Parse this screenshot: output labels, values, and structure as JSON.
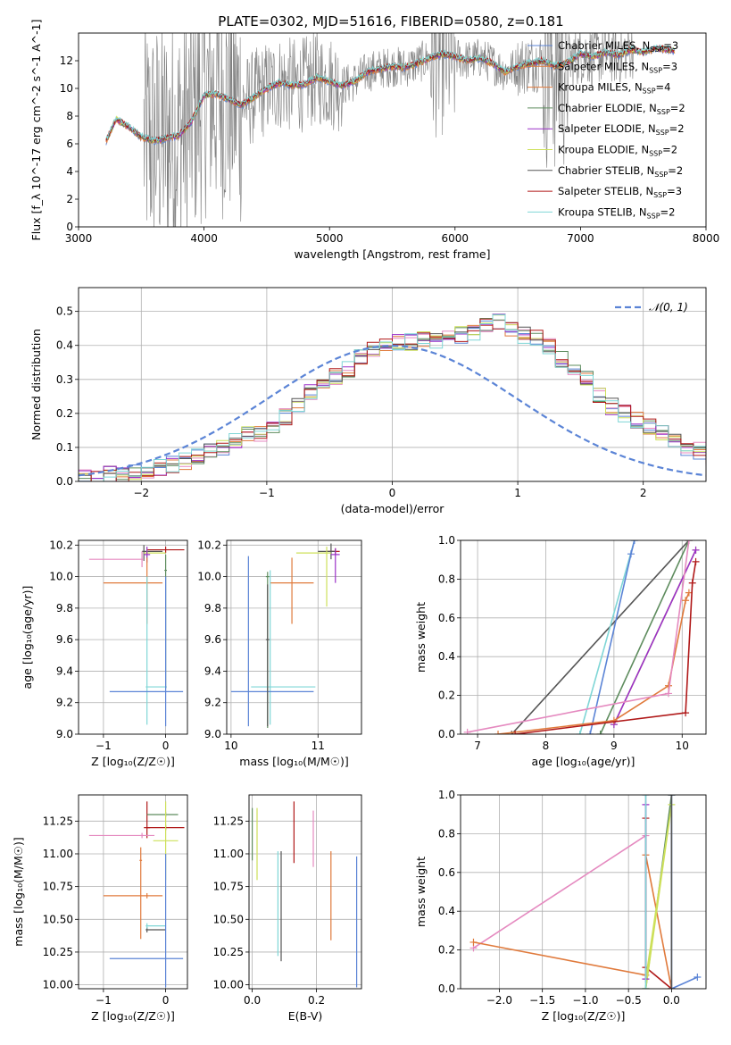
{
  "figure": {
    "title": "PLATE=0302, MJD=51616, FIBERID=0580, z=0.181"
  },
  "series_colors": {
    "Chabrier MILES": "#5b84d6",
    "Salpeter MILES": "#e07a3c",
    "Kroupa MILES": "#e07a3c",
    "Chabrier ELODIE": "#5e8c5e",
    "Salpeter ELODIE": "#9b30c8",
    "Kroupa ELODIE": "#cde05a",
    "Chabrier STELIB": "#555555",
    "Salpeter STELIB": "#b01818",
    "Kroupa STELIB": "#7fd6d6",
    "pink": "#e58ac0",
    "gray_spectrum": "#808080"
  },
  "chart_data": [
    {
      "id": "spectrum",
      "type": "line",
      "title": "PLATE=0302, MJD=51616, FIBERID=0580, z=0.181",
      "xlabel": "wavelength [Angstrom, rest frame]",
      "ylabel": "Flux [f_λ 10^-17 erg cm^-2 s^-1 A^-1]",
      "xlim": [
        3000,
        8000
      ],
      "ylim": [
        0,
        14
      ],
      "xticks": [
        3000,
        4000,
        5000,
        6000,
        7000,
        8000
      ],
      "yticks": [
        0,
        2,
        4,
        6,
        8,
        10,
        12
      ],
      "legend_position": "top-right",
      "legend": [
        {
          "label": "Chabrier MILES, N",
          "sub": "SSP",
          "suffix": "=3",
          "color": "#5b84d6"
        },
        {
          "label": "Salpeter MILES, N",
          "sub": "SSP",
          "suffix": "=3",
          "color": "#e07a3c"
        },
        {
          "label": "Kroupa MILES, N",
          "sub": "SSP",
          "suffix": "=4",
          "color": "#e07a3c"
        },
        {
          "label": "Chabrier ELODIE, N",
          "sub": "SSP",
          "suffix": "=2",
          "color": "#5e8c5e"
        },
        {
          "label": "Salpeter ELODIE, N",
          "sub": "SSP",
          "suffix": "=2",
          "color": "#9b30c8"
        },
        {
          "label": "Kroupa ELODIE, N",
          "sub": "SSP",
          "suffix": "=2",
          "color": "#cde05a"
        },
        {
          "label": "Chabrier STELIB, N",
          "sub": "SSP",
          "suffix": "=2",
          "color": "#555555"
        },
        {
          "label": "Salpeter STELIB, N",
          "sub": "SSP",
          "suffix": "=3",
          "color": "#b01818"
        },
        {
          "label": "Kroupa STELIB, N",
          "sub": "SSP",
          "suffix": "=2",
          "color": "#7fd6d6"
        }
      ],
      "model_curve": {
        "x": [
          3220,
          3300,
          3400,
          3500,
          3600,
          3700,
          3800,
          3900,
          4000,
          4100,
          4200,
          4300,
          4400,
          4500,
          4600,
          4700,
          4800,
          4900,
          5000,
          5100,
          5200,
          5300,
          5400,
          5500,
          5600,
          5700,
          5800,
          5900,
          6000,
          6100,
          6200,
          6300,
          6400,
          6500,
          6600,
          6700,
          6800,
          6900,
          7000,
          7100,
          7200,
          7300,
          7400,
          7500,
          7600,
          7700,
          7750
        ],
        "y": [
          6.2,
          7.8,
          7.2,
          6.5,
          6.2,
          6.4,
          6.6,
          7.6,
          9.5,
          9.6,
          9.2,
          8.8,
          9.4,
          10.0,
          10.4,
          10.2,
          10.3,
          10.8,
          10.5,
          10.2,
          10.5,
          11.2,
          11.4,
          11.6,
          11.5,
          11.8,
          12.2,
          12.5,
          12.3,
          12.0,
          12.2,
          11.8,
          11.2,
          11.6,
          11.8,
          12.0,
          11.6,
          11.9,
          12.5,
          12.3,
          12.6,
          12.4,
          12.8,
          12.6,
          12.9,
          12.8,
          12.7
        ]
      },
      "observed_range": [
        3520,
        7420
      ]
    },
    {
      "id": "residuals",
      "type": "histogram",
      "xlabel": "(data-model)/error",
      "ylabel": "Normed distribution",
      "xlim": [
        -2.5,
        2.5
      ],
      "ylim": [
        0,
        0.57
      ],
      "xticks": [
        -2,
        -1,
        0,
        1,
        2
      ],
      "yticks": [
        0,
        0.1,
        0.2,
        0.3,
        0.4,
        0.5
      ],
      "legend_position": "top-right",
      "legend": [
        {
          "label": "𝒩(0, 1)",
          "color": "#5b84d6"
        }
      ],
      "bin_width": 0.1,
      "bin_start": -2.5,
      "base_counts": [
        0.01,
        0.01,
        0.02,
        0.02,
        0.03,
        0.03,
        0.04,
        0.05,
        0.06,
        0.07,
        0.09,
        0.1,
        0.12,
        0.14,
        0.14,
        0.15,
        0.19,
        0.23,
        0.26,
        0.28,
        0.31,
        0.33,
        0.37,
        0.39,
        0.4,
        0.41,
        0.41,
        0.42,
        0.41,
        0.42,
        0.43,
        0.44,
        0.46,
        0.47,
        0.45,
        0.43,
        0.42,
        0.4,
        0.36,
        0.33,
        0.3,
        0.25,
        0.22,
        0.2,
        0.18,
        0.16,
        0.14,
        0.12,
        0.1,
        0.09,
        0.07,
        0.06,
        0.05,
        0.04,
        0.03,
        0.03,
        0.02,
        0.02,
        0.01
      ]
    },
    {
      "id": "age-vs-Z",
      "type": "errorbar",
      "xlabel": "Z [log₁₀(Z/Z☉)]",
      "ylabel": "age  [log₁₀(age/yr)]",
      "xlim": [
        -1.4,
        0.35
      ],
      "ylim": [
        9.0,
        10.23
      ],
      "xticks": [
        -1,
        0
      ],
      "yticks": [
        9.0,
        9.2,
        9.4,
        9.6,
        9.8,
        10.0,
        10.2
      ],
      "points": [
        {
          "x": 0.0,
          "y": 10.17,
          "xerr": [
            0.3,
            0.3
          ],
          "yerr": [
            0.02,
            0.02
          ],
          "color": "#b01818"
        },
        {
          "x": -0.35,
          "y": 10.16,
          "xerr": [
            0.03,
            0.3
          ],
          "yerr": [
            0.06,
            0.04
          ],
          "color": "#555555"
        },
        {
          "x": -0.3,
          "y": 10.15,
          "xerr": [
            0.05,
            0.3
          ],
          "yerr": [
            0.03,
            0.03
          ],
          "color": "#cde05a"
        },
        {
          "x": -0.3,
          "y": 10.14,
          "xerr": [
            0.05,
            0.05
          ],
          "yerr": [
            0.05,
            0.05
          ],
          "color": "#9b30c8"
        },
        {
          "x": -0.38,
          "y": 10.11,
          "xerr": [
            0.85,
            0.03
          ],
          "yerr": [
            0.05,
            0.05
          ],
          "color": "#e58ac0"
        },
        {
          "x": -0.3,
          "y": 9.96,
          "xerr": [
            0.7,
            0.25
          ],
          "yerr": [
            0.26,
            0.16
          ],
          "color": "#e07a3c"
        },
        {
          "x": 0.0,
          "y": 10.04,
          "xerr": [
            0.02,
            0.02
          ],
          "yerr": [
            0.75,
            0.1
          ],
          "color": "#5e8c5e"
        },
        {
          "x": -0.3,
          "y": 9.3,
          "xerr": [
            0.02,
            0.32
          ],
          "yerr": [
            0.24,
            0.7
          ],
          "color": "#7fd6d6"
        },
        {
          "x": 0.0,
          "y": 9.27,
          "xerr": [
            0.9,
            0.28
          ],
          "yerr": [
            0.22,
            0.73
          ],
          "color": "#5b84d6"
        }
      ]
    },
    {
      "id": "age-vs-mass",
      "type": "errorbar",
      "xlabel": "mass [log₁₀(M/M☉)]",
      "ylabel": "",
      "xlim": [
        9.95,
        11.5
      ],
      "ylim": [
        9.0,
        10.23
      ],
      "xticks": [
        10,
        11
      ],
      "yticks": [
        9.0,
        9.2,
        9.4,
        9.6,
        9.8,
        10.0,
        10.2
      ],
      "points": [
        {
          "x": 11.2,
          "y": 10.16,
          "xerr": [
            0.1,
            0.05
          ],
          "yerr": [
            0.02,
            0.02
          ],
          "color": "#b01818"
        },
        {
          "x": 11.15,
          "y": 10.16,
          "xerr": [
            0.15,
            0.05
          ],
          "yerr": [
            0.05,
            0.05
          ],
          "color": "#555555"
        },
        {
          "x": 11.1,
          "y": 10.15,
          "xerr": [
            0.35,
            0.05
          ],
          "yerr": [
            0.34,
            0.04
          ],
          "color": "#cde05a"
        },
        {
          "x": 11.2,
          "y": 10.14,
          "xerr": [
            0.05,
            0.05
          ],
          "yerr": [
            0.18,
            0.04
          ],
          "color": "#9b30c8"
        },
        {
          "x": 10.7,
          "y": 9.96,
          "xerr": [
            0.25,
            0.25
          ],
          "yerr": [
            0.26,
            0.16
          ],
          "color": "#e07a3c"
        },
        {
          "x": 10.42,
          "y": 10.0,
          "xerr": [
            0.02,
            0.02
          ],
          "yerr": [
            0.96,
            0.03
          ],
          "color": "#5e8c5e"
        },
        {
          "x": 10.45,
          "y": 9.3,
          "xerr": [
            0.22,
            0.52
          ],
          "yerr": [
            0.24,
            0.74
          ],
          "color": "#7fd6d6"
        },
        {
          "x": 10.2,
          "y": 9.27,
          "xerr": [
            0.2,
            0.75
          ],
          "yerr": [
            0.22,
            0.86
          ],
          "color": "#5b84d6"
        },
        {
          "x": 10.42,
          "y": 9.6,
          "xerr": [
            0.02,
            0.02
          ],
          "yerr": [
            0.55,
            0.35
          ],
          "color": "#555555"
        }
      ]
    },
    {
      "id": "cumulative-age",
      "type": "line",
      "xlabel": "age  [log₁₀(age/yr)]",
      "ylabel": "mass weight",
      "xlim": [
        6.75,
        10.35
      ],
      "ylim": [
        0,
        1.0
      ],
      "xticks": [
        7,
        8,
        9,
        10
      ],
      "yticks": [
        0.0,
        0.2,
        0.4,
        0.6,
        0.8,
        1.0
      ],
      "series": [
        {
          "color": "#555555",
          "x": [
            7.5,
            10.1
          ],
          "y": [
            0.0,
            1.0
          ]
        },
        {
          "color": "#7fd6d6",
          "x": [
            8.5,
            9.3
          ],
          "y": [
            0.0,
            1.0
          ]
        },
        {
          "color": "#5b84d6",
          "x": [
            8.65,
            9.25,
            9.3
          ],
          "y": [
            0.0,
            0.93,
            1.0
          ]
        },
        {
          "color": "#5e8c5e",
          "x": [
            8.8,
            10.1
          ],
          "y": [
            0.0,
            1.0
          ]
        },
        {
          "color": "#cde05a",
          "x": [
            9.0,
            10.2
          ],
          "y": [
            0.05,
            0.95
          ]
        },
        {
          "color": "#9b30c8",
          "x": [
            9.0,
            10.2
          ],
          "y": [
            0.05,
            0.95
          ]
        },
        {
          "color": "#e07a3c",
          "x": [
            7.3,
            9.0,
            9.8,
            10.05,
            10.1
          ],
          "y": [
            0.0,
            0.07,
            0.25,
            0.69,
            0.73
          ]
        },
        {
          "color": "#e58ac0",
          "x": [
            6.85,
            9.8,
            10.1
          ],
          "y": [
            0.01,
            0.21,
            1.0
          ]
        },
        {
          "color": "#b01818",
          "x": [
            7.55,
            10.05,
            10.15,
            10.2
          ],
          "y": [
            0.0,
            0.11,
            0.78,
            0.89
          ]
        }
      ]
    },
    {
      "id": "mass-vs-Z",
      "type": "errorbar",
      "xlabel": "Z [log₁₀(Z/Z☉)]",
      "ylabel": "mass [log₁₀(M/M☉)]",
      "xlim": [
        -1.4,
        0.35
      ],
      "ylim": [
        9.97,
        11.45
      ],
      "xticks": [
        -1,
        0
      ],
      "yticks": [
        10.0,
        10.25,
        10.5,
        10.75,
        11.0,
        11.25
      ],
      "points": [
        {
          "x": -0.3,
          "y": 11.2,
          "xerr": [
            0.05,
            0.05
          ],
          "yerr": [
            0.08,
            0.2
          ],
          "color": "#b01818"
        },
        {
          "x": 0.0,
          "y": 11.2,
          "xerr": [
            0.3,
            0.3
          ],
          "yerr": [
            0.02,
            0.02
          ],
          "color": "#b01818"
        },
        {
          "x": 0.0,
          "y": 11.3,
          "xerr": [
            0.3,
            0.2
          ],
          "yerr": [
            0.02,
            0.02
          ],
          "color": "#5e8c5e"
        },
        {
          "x": -0.38,
          "y": 11.14,
          "xerr": [
            0.85,
            0.2
          ],
          "yerr": [
            0.02,
            0.02
          ],
          "color": "#e58ac0"
        },
        {
          "x": 0.0,
          "y": 11.1,
          "xerr": [
            0.2,
            0.2
          ],
          "yerr": [
            0.3,
            0.3
          ],
          "color": "#cde05a"
        },
        {
          "x": -0.4,
          "y": 10.95,
          "xerr": [
            0.02,
            0.02
          ],
          "yerr": [
            0.6,
            0.1
          ],
          "color": "#e07a3c"
        },
        {
          "x": -0.3,
          "y": 10.68,
          "xerr": [
            0.7,
            0.25
          ],
          "yerr": [
            0.02,
            0.02
          ],
          "color": "#e07a3c"
        },
        {
          "x": -0.3,
          "y": 10.42,
          "xerr": [
            0.02,
            0.3
          ],
          "yerr": [
            0.02,
            0.02
          ],
          "color": "#555555"
        },
        {
          "x": -0.3,
          "y": 10.45,
          "xerr": [
            0.02,
            0.3
          ],
          "yerr": [
            0.02,
            0.02
          ],
          "color": "#7fd6d6"
        },
        {
          "x": 0.0,
          "y": 10.2,
          "xerr": [
            0.9,
            0.28
          ],
          "yerr": [
            0.22,
            0.8
          ],
          "color": "#5b84d6"
        }
      ]
    },
    {
      "id": "mass-vs-EBV",
      "type": "errorbar",
      "xlabel": "E(B-V)",
      "ylabel": "",
      "xlim": [
        -0.01,
        0.34
      ],
      "ylim": [
        9.97,
        11.45
      ],
      "xticks": [
        0.0,
        0.2
      ],
      "yticks": [
        10.0,
        10.25,
        10.5,
        10.75,
        11.0,
        11.25
      ],
      "points": [
        {
          "x": 0.0,
          "y": 11.15,
          "xerr": [
            0,
            0
          ],
          "yerr": [
            0.2,
            0.2
          ],
          "color": "#5e8c5e"
        },
        {
          "x": 0.015,
          "y": 11.05,
          "xerr": [
            0,
            0
          ],
          "yerr": [
            0.25,
            0.3
          ],
          "color": "#cde05a"
        },
        {
          "x": 0.08,
          "y": 10.62,
          "xerr": [
            0,
            0
          ],
          "yerr": [
            0.4,
            0.4
          ],
          "color": "#7fd6d6"
        },
        {
          "x": 0.09,
          "y": 10.6,
          "xerr": [
            0,
            0
          ],
          "yerr": [
            0.42,
            0.42
          ],
          "color": "#555555"
        },
        {
          "x": 0.13,
          "y": 11.15,
          "xerr": [
            0,
            0
          ],
          "yerr": [
            0.22,
            0.25
          ],
          "color": "#b01818"
        },
        {
          "x": 0.19,
          "y": 11.1,
          "xerr": [
            0,
            0
          ],
          "yerr": [
            0.2,
            0.23
          ],
          "color": "#e58ac0"
        },
        {
          "x": 0.245,
          "y": 10.68,
          "xerr": [
            0,
            0
          ],
          "yerr": [
            0.34,
            0.34
          ],
          "color": "#e07a3c"
        },
        {
          "x": 0.325,
          "y": 10.48,
          "xerr": [
            0,
            0
          ],
          "yerr": [
            0.5,
            0.5
          ],
          "color": "#5b84d6"
        }
      ]
    },
    {
      "id": "cumulative-Z",
      "type": "line",
      "xlabel": "Z [log₁₀(Z/Z☉)]",
      "ylabel": "mass weight",
      "xlim": [
        -2.45,
        0.4
      ],
      "ylim": [
        0,
        1.0
      ],
      "xticks": [
        -2.0,
        -1.5,
        -1.0,
        -0.5,
        0.0
      ],
      "yticks": [
        0.0,
        0.2,
        0.4,
        0.6,
        0.8,
        1.0
      ],
      "series": [
        {
          "color": "#e58ac0",
          "x": [
            -2.3,
            -0.3,
            -0.3
          ],
          "y": [
            0.21,
            0.79,
            1.0
          ]
        },
        {
          "color": "#e07a3c",
          "x": [
            -2.3,
            -0.3,
            -0.3,
            0.0
          ],
          "y": [
            0.24,
            0.07,
            0.69,
            0.0
          ]
        },
        {
          "color": "#b01818",
          "x": [
            -0.3,
            -0.3,
            0.0
          ],
          "y": [
            0.88,
            0.11,
            0.0
          ]
        },
        {
          "color": "#5e8c5e",
          "x": [
            -0.3,
            0.0
          ],
          "y": [
            0.0,
            1.0
          ]
        },
        {
          "color": "#cde05a",
          "x": [
            -0.3,
            0.0,
            -0.3
          ],
          "y": [
            0.05,
            0.95,
            0.0
          ]
        },
        {
          "color": "#9b30c8",
          "x": [
            -0.3,
            -0.3
          ],
          "y": [
            0.05,
            0.95
          ]
        },
        {
          "color": "#7fd6d6",
          "x": [
            -0.3,
            -0.3
          ],
          "y": [
            0.0,
            1.0
          ]
        },
        {
          "color": "#5b84d6",
          "x": [
            0.0,
            0.0,
            0.3
          ],
          "y": [
            1.0,
            0.0,
            0.06
          ]
        },
        {
          "color": "#555555",
          "x": [
            0.0,
            0.0
          ],
          "y": [
            0.0,
            1.0
          ]
        }
      ]
    }
  ]
}
